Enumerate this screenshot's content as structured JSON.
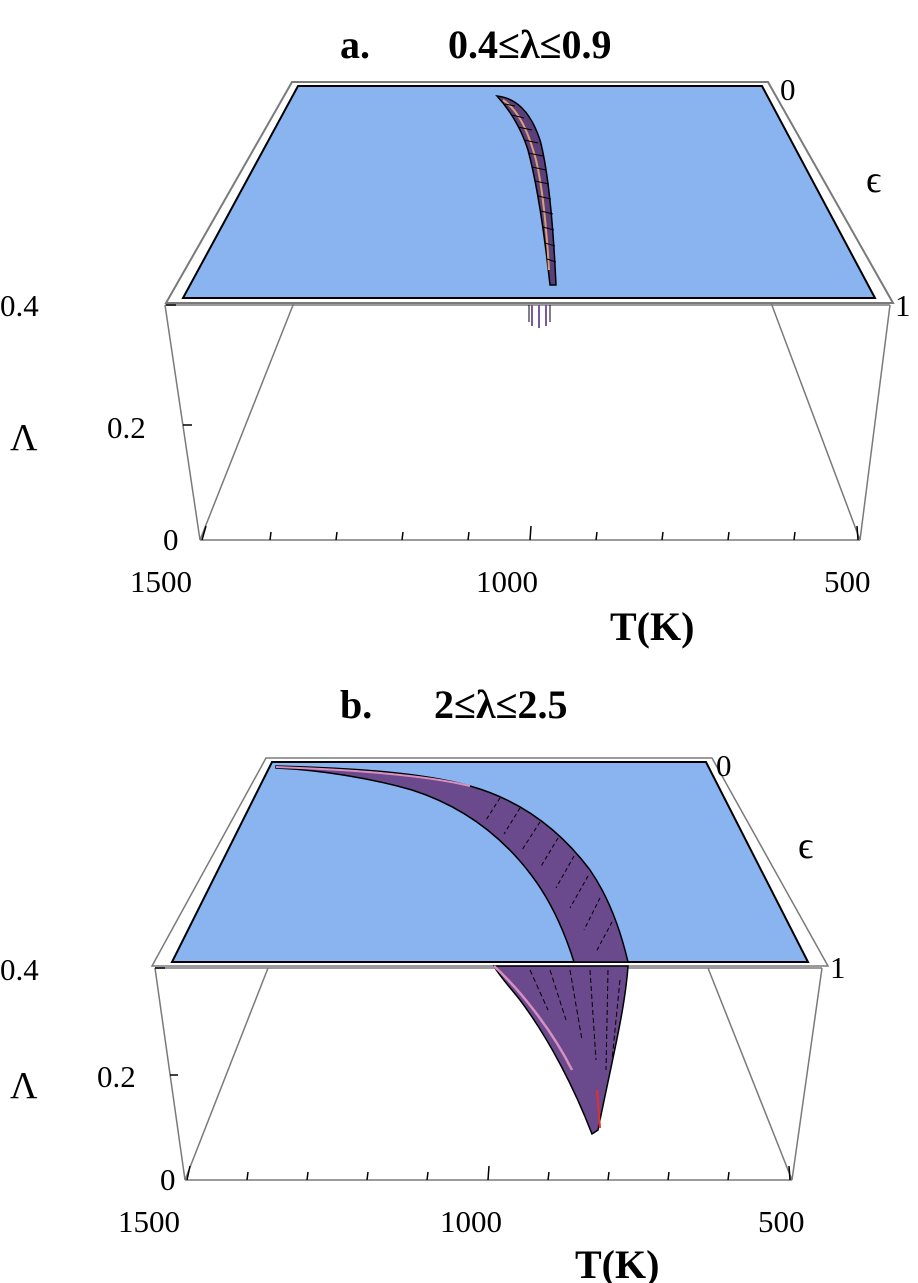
{
  "chart_data": [
    {
      "type": "surface3d",
      "panel": "a.",
      "title": "0.4≤λ≤0.9",
      "x_axis": {
        "label": "T(K)",
        "ticks": [
          "1500",
          "1000",
          "500"
        ],
        "range": [
          1500,
          500
        ]
      },
      "y_axis": {
        "label": "ϵ",
        "ticks": [
          "0",
          "1"
        ],
        "range": [
          0,
          1
        ]
      },
      "z_axis": {
        "label": "Λ",
        "ticks": [
          "0.4",
          "0.2",
          "0"
        ],
        "range": [
          0,
          0.4
        ]
      },
      "plane_color": "#8ab4f0",
      "surface_color": "#6a4a8c",
      "surface": {
        "description_points": [
          {
            "T": 1045,
            "epsilon": 0.0,
            "Lambda": 0.4
          },
          {
            "T": 1000,
            "epsilon": 0.5,
            "Lambda": 0.4
          },
          {
            "T": 970,
            "epsilon": 1.0,
            "Lambda": 0.4
          }
        ]
      }
    },
    {
      "type": "surface3d",
      "panel": "b.",
      "title": "2≤λ≤2.5",
      "x_axis": {
        "label": "T(K)",
        "ticks": [
          "1500",
          "1000",
          "500"
        ],
        "range": [
          1500,
          500
        ]
      },
      "y_axis": {
        "label": "ϵ",
        "ticks": [
          "0",
          "1"
        ],
        "range": [
          0,
          1
        ]
      },
      "z_axis": {
        "label": "Λ",
        "ticks": [
          "0.4",
          "0.2",
          "0"
        ],
        "range": [
          0,
          0.4
        ]
      },
      "plane_color": "#8ab4f0",
      "surface_color": "#6a4a8c",
      "surface": {
        "upper_edge": [
          {
            "T": 1480,
            "epsilon": 0.0
          },
          {
            "T": 1300,
            "epsilon": 0.05
          },
          {
            "T": 1150,
            "epsilon": 0.25
          },
          {
            "T": 1000,
            "epsilon": 0.6
          },
          {
            "T": 880,
            "epsilon": 1.0
          }
        ],
        "lower_tip": {
          "T": 830,
          "Lambda": 0.09
        }
      }
    }
  ]
}
